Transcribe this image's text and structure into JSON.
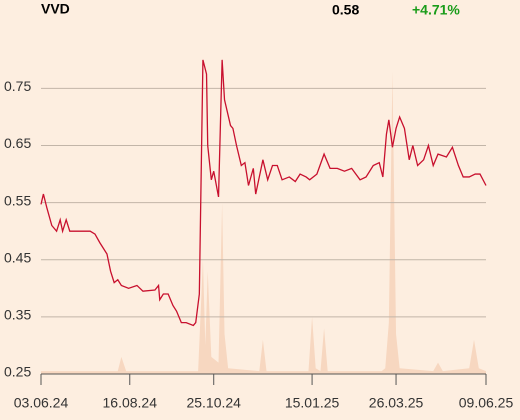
{
  "chart_data": {
    "type": "line",
    "title": "VVD",
    "price": "0.58",
    "change": "+4.71%",
    "change_color": "#1a9c1a",
    "color": "#c8102e",
    "x": [
      "2024-06-03",
      "2024-06-05",
      "2024-06-08",
      "2024-06-12",
      "2024-06-16",
      "2024-06-19",
      "2024-06-21",
      "2024-06-24",
      "2024-06-27",
      "2024-07-01",
      "2024-07-14",
      "2024-07-18",
      "2024-07-22",
      "2024-07-28",
      "2024-07-31",
      "2024-08-03",
      "2024-08-06",
      "2024-08-09",
      "2024-08-15",
      "2024-08-22",
      "2024-08-27",
      "2024-09-06",
      "2024-09-09",
      "2024-09-10",
      "2024-09-13",
      "2024-09-17",
      "2024-09-21",
      "2024-09-24",
      "2024-09-28",
      "2024-10-02",
      "2024-10-08",
      "2024-10-10",
      "2024-10-13",
      "2024-10-16",
      "2024-10-19",
      "2024-10-20",
      "2024-10-23",
      "2024-10-25",
      "2024-10-29",
      "2024-11-01",
      "2024-11-03",
      "2024-11-08",
      "2024-11-10",
      "2024-11-13",
      "2024-11-17",
      "2024-11-20",
      "2024-11-23",
      "2024-11-27",
      "2024-11-29",
      "2024-12-03",
      "2024-12-05",
      "2024-12-09",
      "2024-12-13",
      "2024-12-17",
      "2024-12-21",
      "2024-12-27",
      "2025-01-01",
      "2025-01-05",
      "2025-01-10",
      "2025-01-13",
      "2025-01-19",
      "2025-01-25",
      "2025-01-30",
      "2025-02-05",
      "2025-02-11",
      "2025-02-17",
      "2025-02-24",
      "2025-03-01",
      "2025-03-07",
      "2025-03-12",
      "2025-03-15",
      "2025-03-18",
      "2025-03-20",
      "2025-03-23",
      "2025-03-26",
      "2025-03-29",
      "2025-04-02",
      "2025-04-06",
      "2025-04-09",
      "2025-04-13",
      "2025-04-18",
      "2025-04-22",
      "2025-04-26",
      "2025-04-30",
      "2025-05-07",
      "2025-05-12",
      "2025-05-17",
      "2025-05-21",
      "2025-05-26",
      "2025-05-31",
      "2025-06-04",
      "2025-06-09"
    ],
    "values": [
      0.547,
      0.565,
      0.54,
      0.51,
      0.5,
      0.52,
      0.5,
      0.52,
      0.5,
      0.5,
      0.5,
      0.495,
      0.48,
      0.46,
      0.43,
      0.41,
      0.415,
      0.405,
      0.4,
      0.405,
      0.395,
      0.397,
      0.405,
      0.38,
      0.39,
      0.39,
      0.37,
      0.36,
      0.34,
      0.34,
      0.335,
      0.34,
      0.39,
      0.8,
      0.775,
      0.65,
      0.59,
      0.605,
      0.56,
      0.8,
      0.73,
      0.685,
      0.68,
      0.65,
      0.615,
      0.62,
      0.58,
      0.61,
      0.565,
      0.605,
      0.625,
      0.59,
      0.615,
      0.615,
      0.59,
      0.595,
      0.587,
      0.6,
      0.595,
      0.59,
      0.6,
      0.635,
      0.61,
      0.61,
      0.605,
      0.61,
      0.59,
      0.595,
      0.615,
      0.62,
      0.595,
      0.67,
      0.695,
      0.647,
      0.68,
      0.7,
      0.68,
      0.625,
      0.65,
      0.615,
      0.625,
      0.65,
      0.615,
      0.635,
      0.63,
      0.647,
      0.615,
      0.595,
      0.595,
      0.6,
      0.6,
      0.58
    ],
    "volume": {
      "color": "#f7d7c0",
      "x": [
        "2024-06-03",
        "2024-08-06",
        "2024-08-09",
        "2024-08-13",
        "2024-10-12",
        "2024-10-16",
        "2024-10-18",
        "2024-10-20",
        "2024-10-23",
        "2024-10-29",
        "2024-11-01",
        "2024-11-03",
        "2024-11-06",
        "2024-12-02",
        "2024-12-05",
        "2024-12-08",
        "2025-01-12",
        "2025-01-15",
        "2025-01-18",
        "2025-01-22",
        "2025-01-25",
        "2025-01-28",
        "2025-03-14",
        "2025-03-17",
        "2025-03-20",
        "2025-03-23",
        "2025-03-26",
        "2025-03-29",
        "2025-04-26",
        "2025-04-30",
        "2025-05-04",
        "2025-05-26",
        "2025-05-30",
        "2025-06-03",
        "2025-06-09"
      ],
      "values": [
        0.255,
        0.255,
        0.28,
        0.255,
        0.255,
        0.45,
        0.3,
        0.43,
        0.28,
        0.27,
        0.55,
        0.32,
        0.26,
        0.255,
        0.31,
        0.255,
        0.255,
        0.35,
        0.26,
        0.255,
        0.33,
        0.255,
        0.255,
        0.26,
        0.34,
        0.78,
        0.32,
        0.26,
        0.255,
        0.27,
        0.255,
        0.26,
        0.31,
        0.26,
        0.255
      ]
    },
    "xlim": [
      "2024-06-03",
      "2025-06-09"
    ],
    "xticks": [
      {
        "value": "2024-06-03",
        "label": "03.06.24"
      },
      {
        "value": "2024-08-16",
        "label": "16.08.24"
      },
      {
        "value": "2024-10-25",
        "label": "25.10.24"
      },
      {
        "value": "2025-01-15",
        "label": "15.01.25"
      },
      {
        "value": "2025-03-26",
        "label": "26.03.25"
      },
      {
        "value": "2025-06-09",
        "label": "09.06.25"
      }
    ],
    "ylim": [
      0.25,
      0.84
    ],
    "yticks": [
      0.25,
      0.35,
      0.45,
      0.55,
      0.65,
      0.75
    ],
    "grid": true
  }
}
